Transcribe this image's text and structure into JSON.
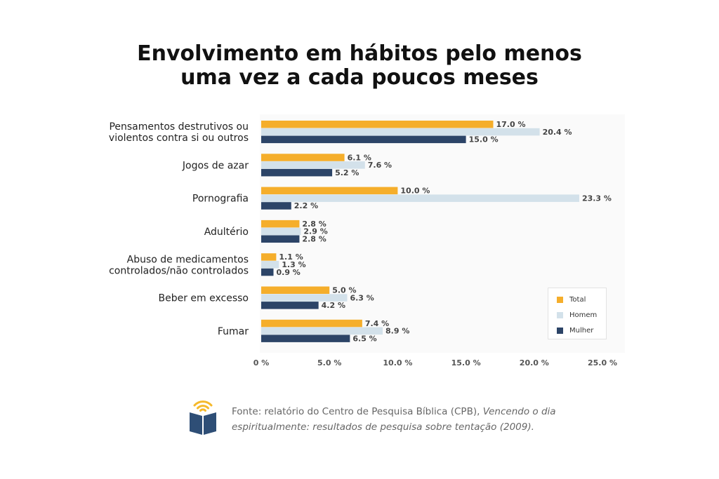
{
  "title_line1": "Envolvimento em hábitos pelo menos",
  "title_line2": "uma vez a cada poucos meses",
  "colors": {
    "total": "#f5ae2b",
    "homem": "#d3e1ea",
    "mulher": "#2c4467",
    "icon_blue": "#2e4e76",
    "icon_yellow": "#f5b92b"
  },
  "chart_data": {
    "type": "bar",
    "orientation": "horizontal",
    "categories": [
      [
        "Pensamentos destrutivos ou",
        "violentos contra si ou outros"
      ],
      [
        "Jogos de azar"
      ],
      [
        "Pornografia"
      ],
      [
        "Adultério"
      ],
      [
        "Abuso de medicamentos",
        "controlados/não controlados"
      ],
      [
        "Beber em excesso"
      ],
      [
        "Fumar"
      ]
    ],
    "series": [
      {
        "name": "Total",
        "values": [
          17.0,
          6.1,
          10.0,
          2.8,
          1.1,
          5.0,
          7.4
        ],
        "labels": [
          "17.0 %",
          "6.1 %",
          "10.0 %",
          "2.8 %",
          "1.1 %",
          "5.0 %",
          "7.4 %"
        ]
      },
      {
        "name": "Homem",
        "values": [
          20.4,
          7.6,
          23.3,
          2.9,
          1.3,
          6.3,
          8.9
        ],
        "labels": [
          "20.4 %",
          "7.6 %",
          "23.3 %",
          "2.9 %",
          "1.3 %",
          "6.3 %",
          "8.9 %"
        ]
      },
      {
        "name": "Mulher",
        "values": [
          15.0,
          5.2,
          2.2,
          2.8,
          0.9,
          4.2,
          6.5
        ],
        "labels": [
          "15.0 %",
          "5.2 %",
          "2.2 %",
          "2.8 %",
          "0.9 %",
          "4.2 %",
          "6.5 %"
        ]
      }
    ],
    "x_ticks": [
      0,
      5,
      10,
      15,
      20,
      25
    ],
    "x_tick_labels": [
      "0 %",
      "5.0 %",
      "10.0 %",
      "15.0 %",
      "20.0 %",
      "25.0 %"
    ],
    "xlim": [
      0,
      25
    ],
    "legend_position": "bottom-right",
    "grid": false
  },
  "legend": {
    "total": "Total",
    "homem": "Homem",
    "mulher": "Mulher"
  },
  "footer": {
    "source_prefix": "Fonte: relatório do Centro de Pesquisa Bíblica (CPB), ",
    "source_italic": "Vencendo o dia espiritualmente: resultados de pesquisa sobre tentação (2009)."
  }
}
